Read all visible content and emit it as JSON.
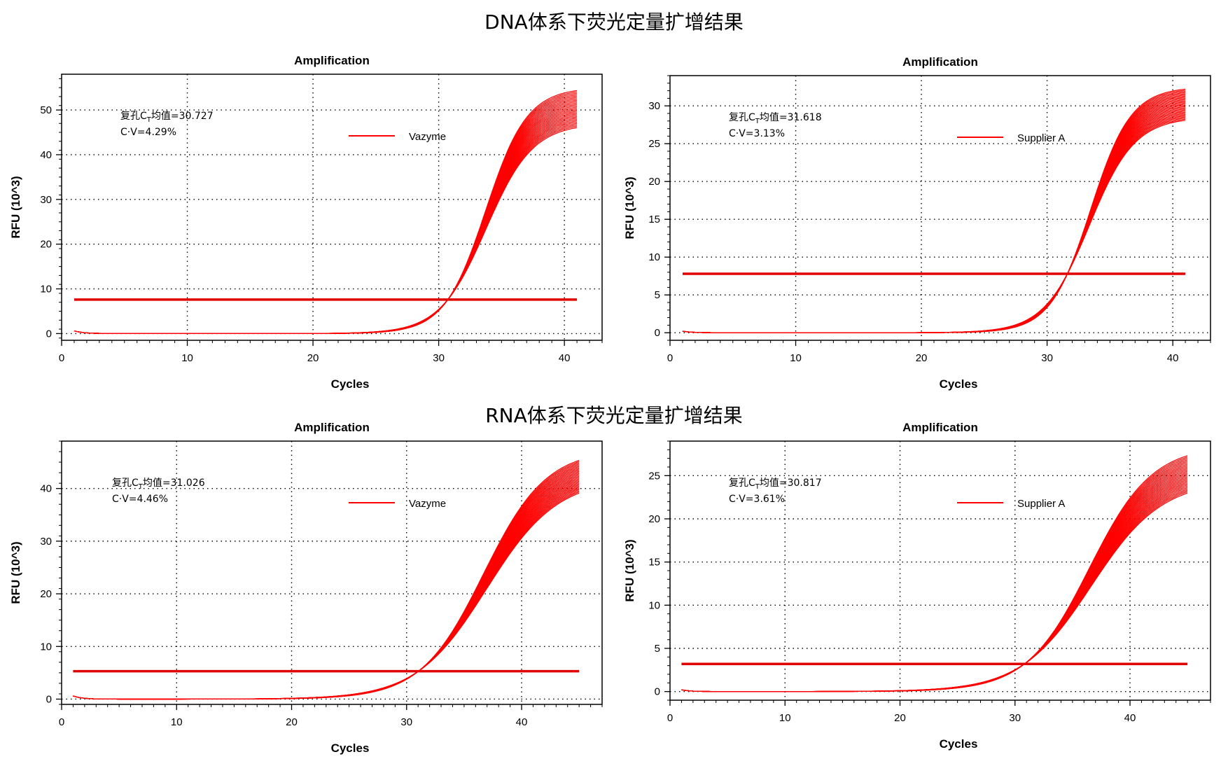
{
  "sections": {
    "dna_title": "DNA体系下荧光定量扩增结果",
    "rna_title": "RNA体系下荧光定量扩增结果"
  },
  "colors": {
    "curve": "#ff0000",
    "threshold": "#e00000",
    "grid": "#000000",
    "frame": "#000000"
  },
  "chart_data": [
    {
      "type": "line",
      "title": "Amplification",
      "xlabel": "Cycles",
      "ylabel": "RFU (10^3)",
      "xlim": [
        0,
        43
      ],
      "ylim": [
        -1.5,
        58
      ],
      "xticks": [
        0,
        10,
        20,
        30,
        40
      ],
      "yticks": [
        0,
        10,
        20,
        30,
        40,
        50
      ],
      "annotation": {
        "prefix": "复孔C",
        "sub": "T",
        "suffix": "均值=30.727",
        "cv": "C·V=4.29%"
      },
      "legend": {
        "label": "Vazyme",
        "position": "upper-middle"
      },
      "threshold": 7.6,
      "cycles_range": [
        1,
        41
      ],
      "series_model": {
        "count": 28,
        "plateau_min": 47,
        "plateau_max": 55,
        "ct": 30.727,
        "initial": 0.6,
        "slope": 1.75
      }
    },
    {
      "type": "line",
      "title": "Amplification",
      "xlabel": "Cycles",
      "ylabel": "RFU (10^3)",
      "xlim": [
        0,
        43
      ],
      "ylim": [
        -1,
        34
      ],
      "xticks": [
        0,
        10,
        20,
        30,
        40
      ],
      "yticks": [
        0,
        5,
        10,
        15,
        20,
        25,
        30
      ],
      "annotation": {
        "prefix": "复孔C",
        "sub": "T",
        "suffix": "均值=31.618",
        "cv": "C·V=3.13%"
      },
      "legend": {
        "label": "Supplier A",
        "position": "upper-middle"
      },
      "threshold": 7.8,
      "cycles_range": [
        1,
        41
      ],
      "series_model": {
        "count": 28,
        "plateau_min": 28.5,
        "plateau_max": 32.5,
        "ct": 31.618,
        "initial": 0.2,
        "slope": 1.7
      }
    },
    {
      "type": "line",
      "title": "Amplification",
      "xlabel": "Cycles",
      "ylabel": "RFU (10^3)",
      "xlim": [
        0,
        47
      ],
      "ylim": [
        -1,
        49
      ],
      "xticks": [
        0,
        10,
        20,
        30,
        40
      ],
      "yticks": [
        0,
        10,
        20,
        30,
        40
      ],
      "annotation": {
        "prefix": "复孔C",
        "sub": "T",
        "suffix": "均值=31.026",
        "cv": "C·V=4.46%"
      },
      "legend": {
        "label": "Vazyme",
        "position": "upper-middle"
      },
      "threshold": 5.3,
      "cycles_range": [
        1,
        45
      ],
      "series_model": {
        "count": 28,
        "plateau_min": 42,
        "plateau_max": 47.5,
        "ct": 31.026,
        "initial": 0.6,
        "slope": 2.9
      }
    },
    {
      "type": "line",
      "title": "Amplification",
      "xlabel": "Cycles",
      "ylabel": "RFU (10^3)",
      "xlim": [
        0,
        47
      ],
      "ylim": [
        -1,
        29
      ],
      "xticks": [
        0,
        10,
        20,
        30,
        40
      ],
      "yticks": [
        0,
        5,
        10,
        15,
        20,
        25
      ],
      "annotation": {
        "prefix": "复孔C",
        "sub": "T",
        "suffix": "均值=30.817",
        "cv": "C·V=3.61%"
      },
      "legend": {
        "label": "Supplier A",
        "position": "upper-middle"
      },
      "threshold": 3.2,
      "cycles_range": [
        1,
        45
      ],
      "series_model": {
        "count": 28,
        "plateau_min": 24.5,
        "plateau_max": 28.5,
        "ct": 30.817,
        "initial": 0.2,
        "slope": 2.9
      }
    }
  ]
}
